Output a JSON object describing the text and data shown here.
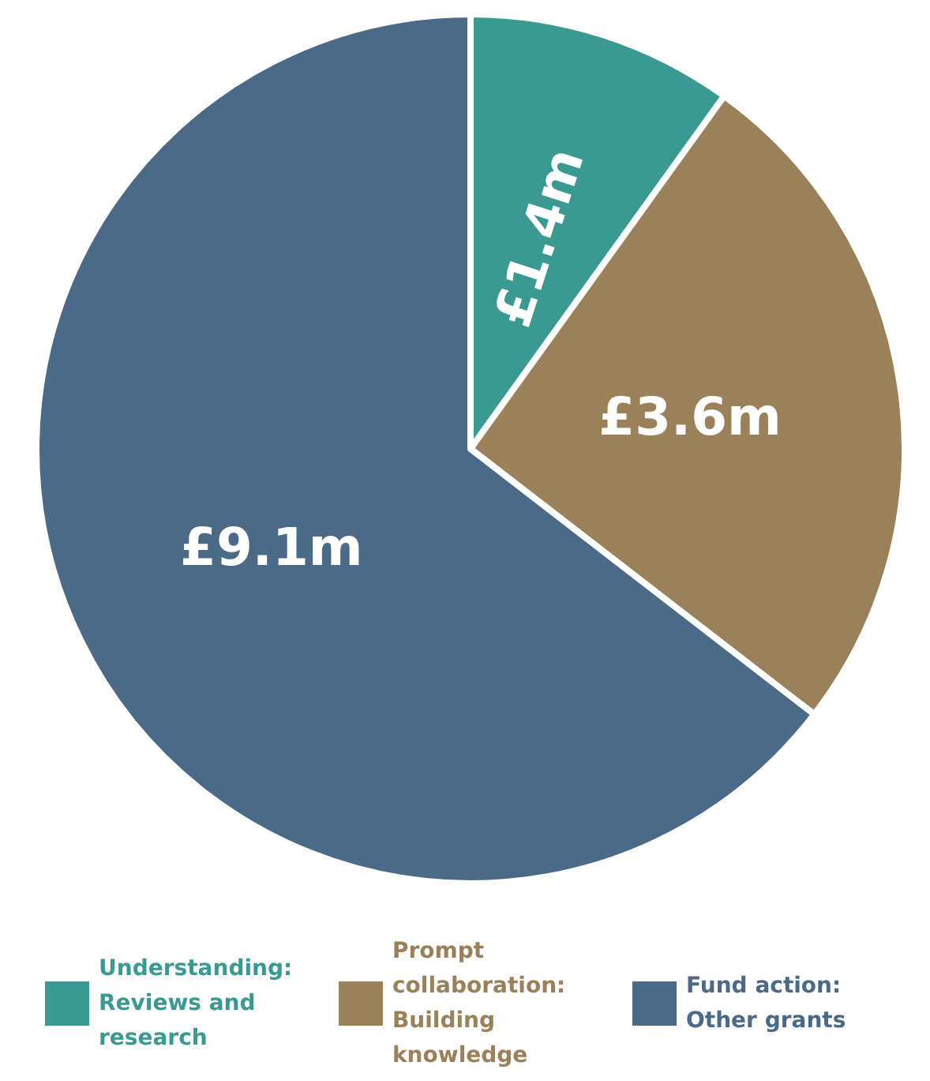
{
  "chart_data": {
    "type": "pie",
    "categories": [
      "Understanding: Reviews and research",
      "Prompt collaboration: Building knowledge",
      "Fund action: Other grants"
    ],
    "values": [
      1.4,
      3.6,
      9.1
    ],
    "value_labels": [
      "£1.4m",
      "£3.6m",
      "£9.1m"
    ],
    "colors": [
      "#3a9990",
      "#9a8159",
      "#4a6a87"
    ],
    "legend": "bottom"
  }
}
